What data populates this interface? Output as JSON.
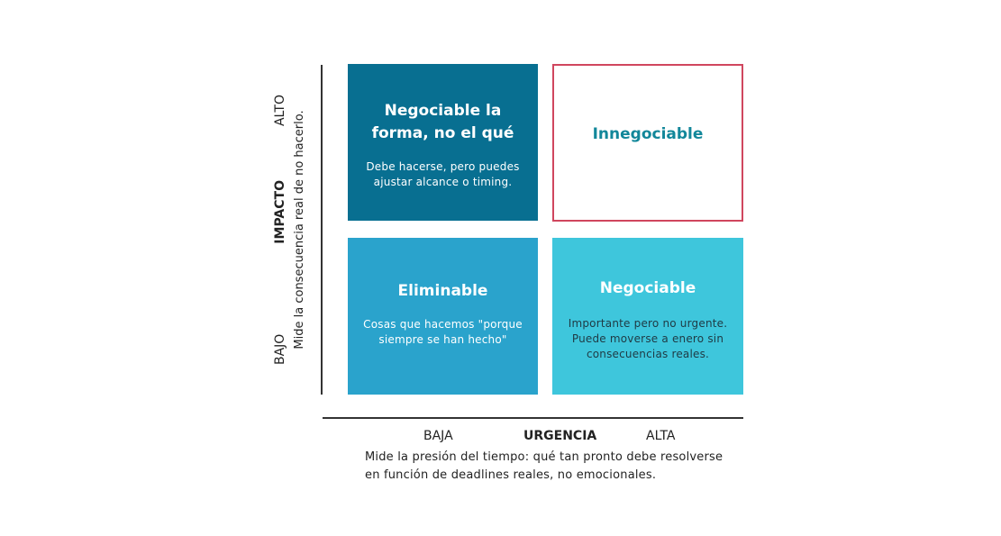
{
  "colors": {
    "q1": "#086f91",
    "q2_border": "#d0465e",
    "q2_title": "#12879a",
    "q3": "#2aa3cc",
    "q4": "#3ec6dc"
  },
  "quadrants": [
    {
      "title": "Negociable la forma, no el qué",
      "text": "Debe hacerse, pero puedes ajustar alcance o timing."
    },
    {
      "title": "Innegociable",
      "text": ""
    },
    {
      "title": "Eliminable",
      "text": "Cosas que hacemos \"porque siempre se han hecho\""
    },
    {
      "title": "Negociable",
      "text": "Importante pero no urgente. Puede moverse a enero sin consecuencias reales."
    }
  ],
  "y_axis": {
    "low": "BAJO",
    "title": "IMPACTO",
    "high": "ALTO",
    "description": "Mide la consecuencia real de no hacerlo."
  },
  "x_axis": {
    "low": "BAJA",
    "title": "URGENCIA",
    "high": "ALTA",
    "description_line1": "Mide la presión del tiempo: qué tan pronto debe resolverse",
    "description_line2": "en función de deadlines reales, no emocionales."
  }
}
